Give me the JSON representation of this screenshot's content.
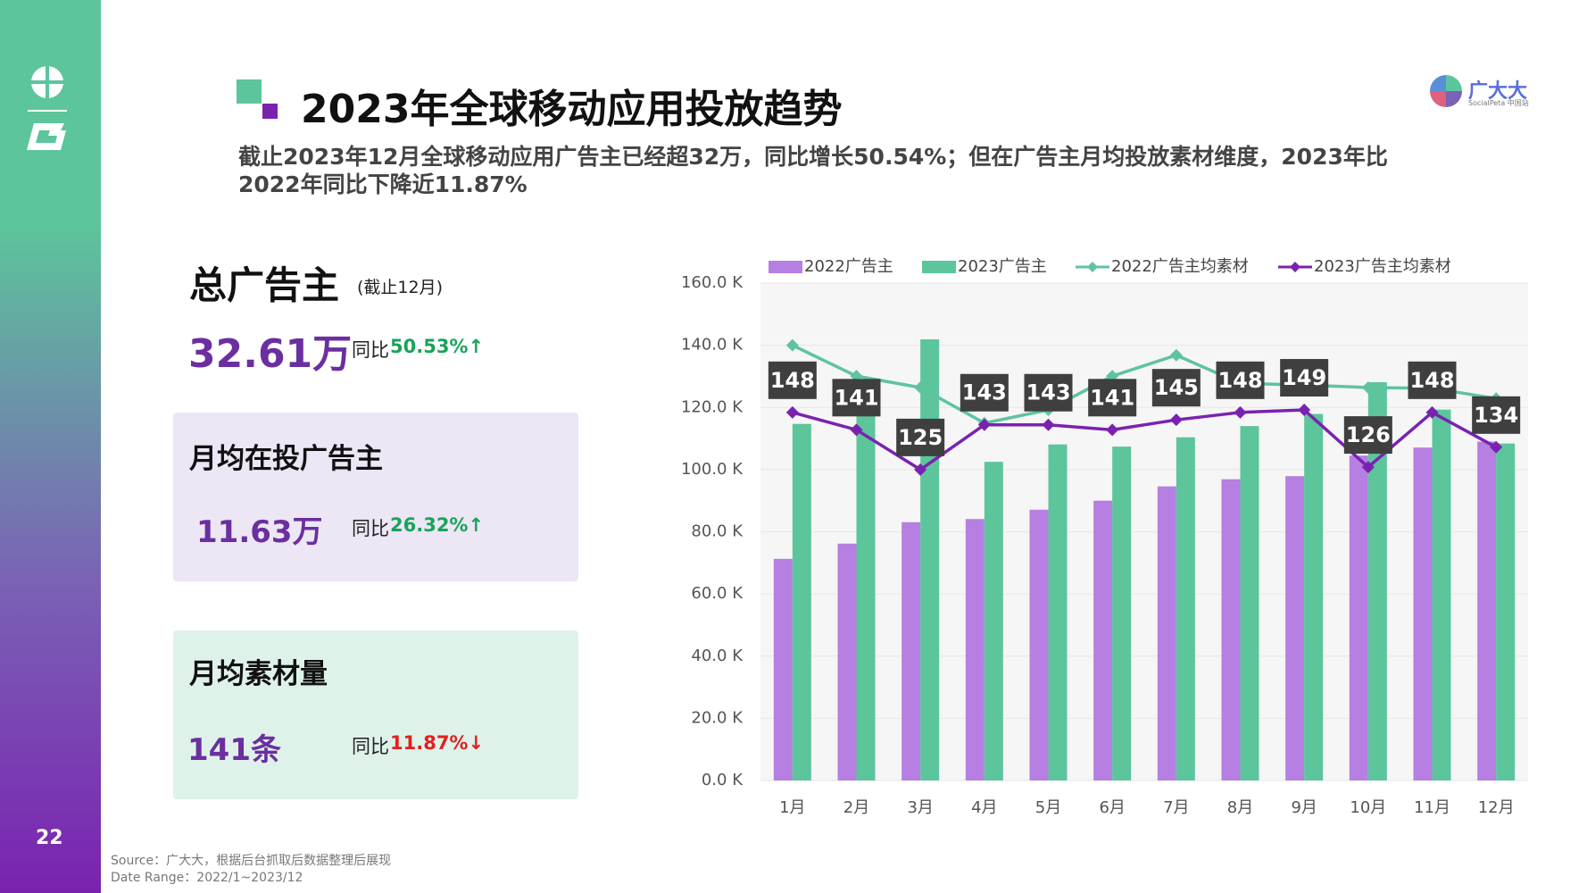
{
  "slide": {
    "page_number": "22",
    "title": "2023年全球移动应用投放趋势",
    "subtitle": "截止2023年12月全球移动应用广告主已经超32万，同比增长50.54%；但在广告主月均投放素材维度，2023年比2022年同比下降近11.87%",
    "logo_text": "广大大",
    "logo_sub": "SocialPeta 中国站",
    "kpis": [
      {
        "title": "总广告主",
        "note": "(截止12月)",
        "value": "32.61万",
        "yoy_label": "同比",
        "yoy": "50.53%↑"
      },
      {
        "title": "月均在投广告主",
        "value": "11.63万",
        "yoy_label": "同比",
        "yoy": "26.32%↑"
      },
      {
        "title": "月均素材量",
        "value": "141条",
        "yoy_label": "同比",
        "yoy": "11.87%↓"
      }
    ],
    "source": "Source：广大大，根据后台抓取后数据整理后展现",
    "date_range": "Date Range：2022/1~2023/12"
  },
  "chart_data": {
    "type": "bar-line",
    "categories": [
      "1月",
      "2月",
      "3月",
      "4月",
      "5月",
      "6月",
      "7月",
      "8月",
      "9月",
      "10月",
      "11月",
      "12月"
    ],
    "series": [
      {
        "name": "2022广告主",
        "type": "bar",
        "color": "#b67fe2",
        "values": [
          71.3,
          76.2,
          83.1,
          84.1,
          87.1,
          90,
          94.6,
          96.9,
          97.9,
          104.5,
          107.1,
          109
        ]
      },
      {
        "name": "2023广告主",
        "type": "bar",
        "color": "#5cc59b",
        "values": [
          114.7,
          121,
          141.9,
          102.5,
          108.1,
          107.4,
          110.4,
          114,
          117.9,
          128.1,
          119.3,
          108.4
        ]
      },
      {
        "name": "2022广告主均素材",
        "type": "line",
        "axis": "y2",
        "color": "#5fc3a0",
        "values": [
          175,
          162.6,
          158,
          143.7,
          149,
          162.6,
          171,
          159.7,
          159,
          158,
          157.7,
          153.6
        ]
      },
      {
        "name": "2023广告主均素材",
        "type": "line",
        "axis": "y2",
        "color": "#7a22b0",
        "values": [
          148,
          141,
          125,
          143,
          143,
          141,
          145,
          148,
          149,
          126,
          148,
          134
        ]
      }
    ],
    "ylim": [
      0,
      160
    ],
    "yticks": [
      {
        "value": 0,
        "label": "0.0 K"
      },
      {
        "value": 20,
        "label": "20.0 K"
      },
      {
        "value": 40,
        "label": "40.0 K"
      },
      {
        "value": 60,
        "label": "60.0 K"
      },
      {
        "value": 80,
        "label": "80.0 K"
      },
      {
        "value": 100,
        "label": "100.0 K"
      },
      {
        "value": 120,
        "label": "120.0 K"
      },
      {
        "value": 140,
        "label": "140.0 K"
      },
      {
        "value": 160,
        "label": "160.0 K"
      }
    ],
    "y2lim": [
      0,
      200
    ],
    "legend": "top"
  }
}
